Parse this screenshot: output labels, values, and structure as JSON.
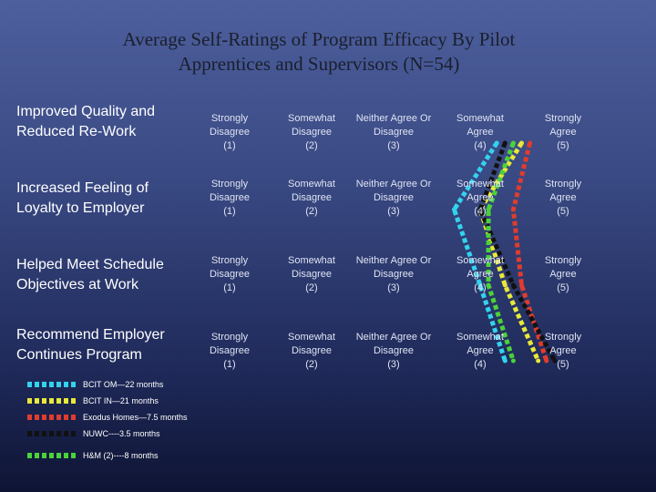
{
  "chart_data": {
    "type": "line",
    "title_lines": [
      "Average Self-Ratings of Program Efficacy By Pilot",
      "Apprentices and Supervisors (N=54)"
    ],
    "rows": [
      "Improved Quality and Reduced Re-Work",
      "Increased Feeling of Loyalty to Employer",
      "Helped Meet Schedule Objectives at Work",
      "Recommend Employer Continues Program"
    ],
    "scale_labels": [
      [
        "Strongly",
        "Disagree",
        "(1)"
      ],
      [
        "Somewhat",
        "Disagree",
        "(2)"
      ],
      [
        "Neither Agree  Or",
        "Disagree",
        "(3)"
      ],
      [
        "Somewhat",
        "Agree",
        "(4)"
      ],
      [
        "Strongly",
        "Agree",
        "(5)"
      ]
    ],
    "xlim": [
      1,
      5
    ],
    "series": [
      {
        "name": "BCIT OM—22 months",
        "color": "#33d3ee",
        "values": [
          4.2,
          3.7,
          4.0,
          4.3
        ]
      },
      {
        "name": "BCIT IN—21 months",
        "color": "#e8e83a",
        "values": [
          4.5,
          4.0,
          4.3,
          4.7
        ]
      },
      {
        "name": "Exodus Homes—7.5 months",
        "color": "#e13c2c",
        "values": [
          4.6,
          4.4,
          4.5,
          4.8
        ]
      },
      {
        "name": "NUWC----3.5 months",
        "color": "#111111",
        "values": [
          4.3,
          4.0,
          4.4,
          4.9
        ]
      },
      {
        "name": "H&M (2)----8 months",
        "color": "#4bd23a",
        "values": [
          4.4,
          4.1,
          4.1,
          4.4
        ]
      }
    ]
  }
}
